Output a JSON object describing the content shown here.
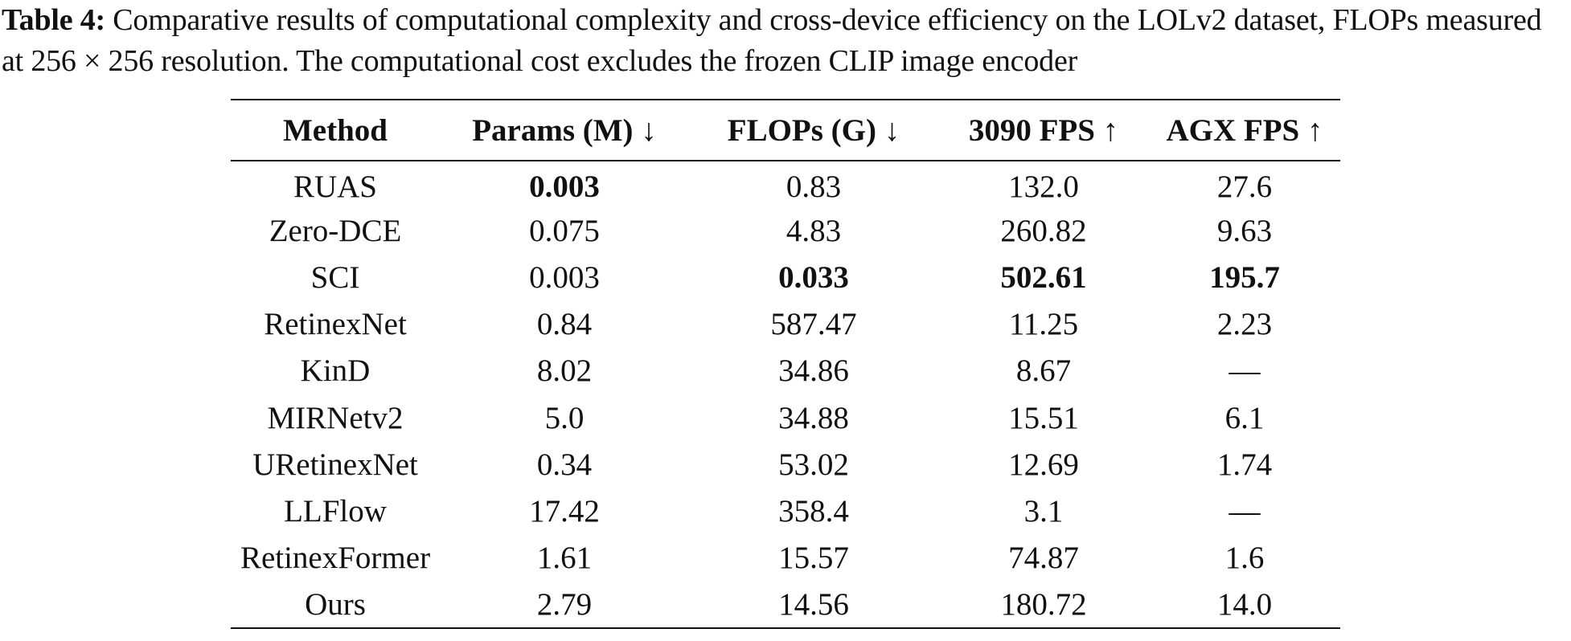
{
  "caption": {
    "label": "Table 4:",
    "text": " Comparative results of computational complexity and cross-device efficiency on the LOLv2 dataset, FLOPs measured at 256 × 256 resolution. The computational cost excludes the frozen CLIP image encoder"
  },
  "table": {
    "headers": [
      "Method",
      "Params (M) ↓",
      "FLOPs (G) ↓",
      "3090 FPS ↑",
      "AGX FPS ↑"
    ],
    "rows": [
      [
        "RUAS",
        "0.003",
        "0.83",
        "132.0",
        "27.6"
      ],
      [
        "Zero-DCE",
        "0.075",
        "4.83",
        "260.82",
        "9.63"
      ],
      [
        "SCI",
        "0.003",
        "0.033",
        "502.61",
        "195.7"
      ],
      [
        "RetinexNet",
        "0.84",
        "587.47",
        "11.25",
        "2.23"
      ],
      [
        "KinD",
        "8.02",
        "34.86",
        "8.67",
        "—"
      ],
      [
        "MIRNetv2",
        "5.0",
        "34.88",
        "15.51",
        "6.1"
      ],
      [
        "URetinexNet",
        "0.34",
        "53.02",
        "12.69",
        "1.74"
      ],
      [
        "LLFlow",
        "17.42",
        "358.4",
        "3.1",
        "—"
      ],
      [
        "RetinexFormer",
        "1.61",
        "15.57",
        "74.87",
        "1.6"
      ],
      [
        "Ours",
        "2.79",
        "14.56",
        "180.72",
        "14.0"
      ]
    ],
    "bold_cells": [
      [
        0,
        1
      ],
      [
        2,
        2
      ],
      [
        2,
        3
      ],
      [
        2,
        4
      ]
    ]
  }
}
